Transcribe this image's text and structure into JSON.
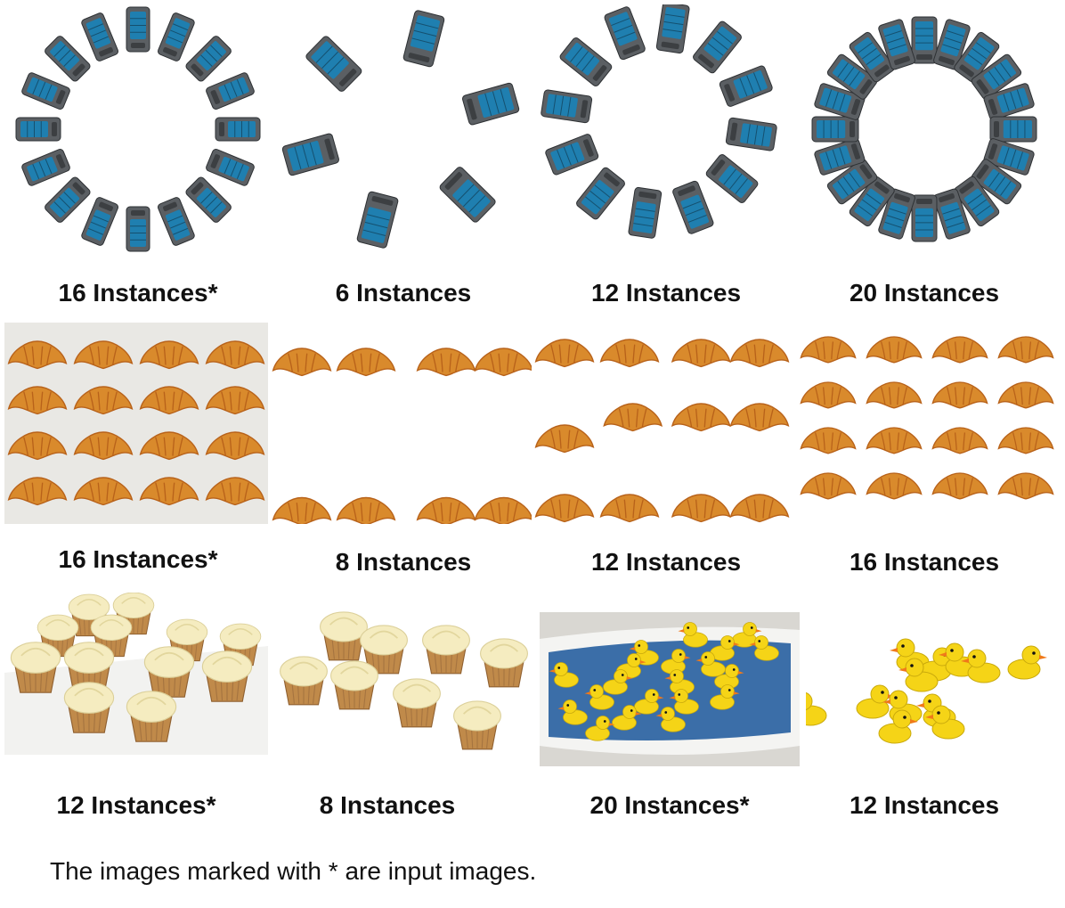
{
  "rows": [
    {
      "subject": "toy-car",
      "panels": [
        {
          "count": 16,
          "label": "16 Instances*",
          "is_input": true,
          "background": "plain"
        },
        {
          "count": 6,
          "label": "6 Instances",
          "is_input": false,
          "background": "plain"
        },
        {
          "count": 12,
          "label": "12 Instances",
          "is_input": false,
          "background": "plain"
        },
        {
          "count": 20,
          "label": "20 Instances",
          "is_input": false,
          "background": "plain"
        }
      ]
    },
    {
      "subject": "croissant",
      "panels": [
        {
          "count": 16,
          "label": "16 Instances*",
          "is_input": true,
          "background": "baking-sheet"
        },
        {
          "count": 8,
          "label": "8 Instances",
          "is_input": false,
          "background": "plain"
        },
        {
          "count": 12,
          "label": "12 Instances",
          "is_input": false,
          "background": "plain"
        },
        {
          "count": 16,
          "label": "16 Instances",
          "is_input": false,
          "background": "plain"
        }
      ]
    },
    {
      "subject": "cupcake",
      "panels": [
        {
          "count": 12,
          "label": "12 Instances*",
          "is_input": true,
          "background": "tray"
        },
        {
          "count": 8,
          "label": "8 Instances",
          "is_input": false,
          "background": "plain"
        }
      ]
    },
    {
      "subject": "rubber-duck",
      "panels": [
        {
          "count": 20,
          "label": "20 Instances*",
          "is_input": true,
          "background": "bathtub"
        },
        {
          "count": 12,
          "label": "12 Instances",
          "is_input": false,
          "background": "plain"
        }
      ]
    }
  ],
  "caption": "The images marked with * are input images.",
  "colors": {
    "car_body": "#5b5f63",
    "car_window": "#1f7fb0",
    "croissant": "#d98a2c",
    "croissant_dark": "#b8621a",
    "cupcake_frosting": "#f5ecc0",
    "cupcake_liner": "#c08a4a",
    "duck": "#f5d417",
    "duck_beak": "#f07a1a",
    "water": "#3b6ea8"
  }
}
